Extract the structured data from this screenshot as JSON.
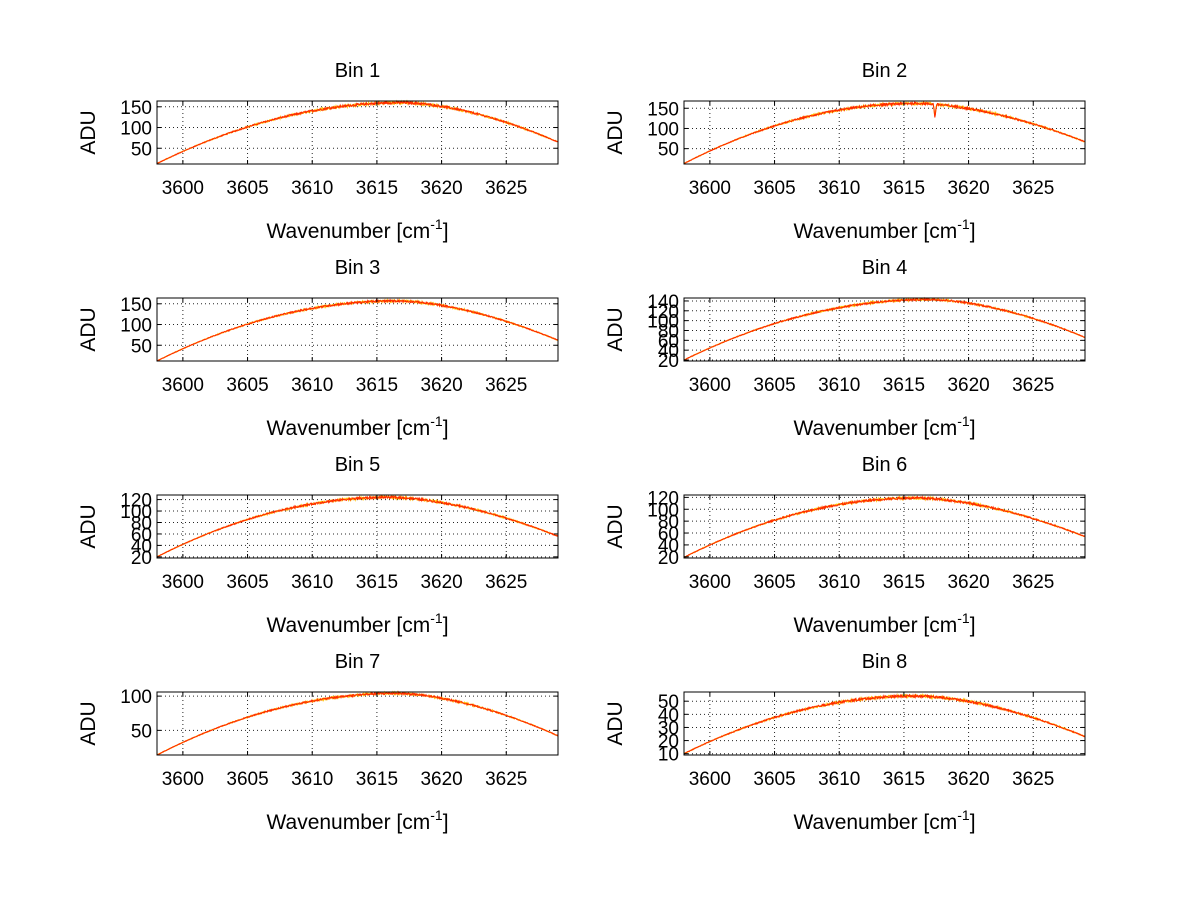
{
  "figure": {
    "xlabel": "Wavenumber [cm",
    "xlabel_sup": "-1",
    "xlabel_close": "]",
    "ylabel": "ADU"
  },
  "chart_data": [
    {
      "type": "line",
      "title": "Bin 1",
      "xlim": [
        3598,
        3629
      ],
      "ylim": [
        12,
        164
      ],
      "xticks": [
        3600,
        3605,
        3610,
        3615,
        3620,
        3625
      ],
      "yticks": [
        50,
        100,
        150
      ],
      "grid": true,
      "peak_x": 3617,
      "peak_y": 160,
      "min_y": 13,
      "end_y": 65,
      "noise": 3,
      "dips": []
    },
    {
      "type": "line",
      "title": "Bin 2",
      "xlim": [
        3598,
        3629
      ],
      "ylim": [
        12,
        168
      ],
      "xticks": [
        3600,
        3605,
        3610,
        3615,
        3620,
        3625
      ],
      "yticks": [
        50,
        100,
        150
      ],
      "grid": true,
      "peak_x": 3616,
      "peak_y": 162,
      "min_y": 13,
      "end_y": 67,
      "noise": 3,
      "dips": [
        {
          "x": 3617.4,
          "y": 125
        }
      ]
    },
    {
      "type": "line",
      "title": "Bin 3",
      "xlim": [
        3598,
        3629
      ],
      "ylim": [
        12,
        164
      ],
      "xticks": [
        3600,
        3605,
        3610,
        3615,
        3620,
        3625
      ],
      "yticks": [
        50,
        100,
        150
      ],
      "grid": true,
      "peak_x": 3616.5,
      "peak_y": 157,
      "min_y": 12,
      "end_y": 62,
      "noise": 2.5,
      "dips": []
    },
    {
      "type": "line",
      "title": "Bin 4",
      "xlim": [
        3598,
        3629
      ],
      "ylim": [
        18,
        146
      ],
      "xticks": [
        3600,
        3605,
        3610,
        3615,
        3620,
        3625
      ],
      "yticks": [
        20,
        40,
        60,
        80,
        100,
        120,
        140
      ],
      "grid": true,
      "peak_x": 3617,
      "peak_y": 143,
      "min_y": 20,
      "end_y": 66,
      "noise": 2,
      "dips": []
    },
    {
      "type": "line",
      "title": "Bin 5",
      "xlim": [
        3598,
        3629
      ],
      "ylim": [
        18,
        128
      ],
      "xticks": [
        3600,
        3605,
        3610,
        3615,
        3620,
        3625
      ],
      "yticks": [
        20,
        40,
        60,
        80,
        100,
        120
      ],
      "grid": true,
      "peak_x": 3616,
      "peak_y": 124,
      "min_y": 20,
      "end_y": 56,
      "noise": 2,
      "dips": []
    },
    {
      "type": "line",
      "title": "Bin 6",
      "xlim": [
        3598,
        3629
      ],
      "ylim": [
        18,
        124
      ],
      "xticks": [
        3600,
        3605,
        3610,
        3615,
        3620,
        3625
      ],
      "yticks": [
        20,
        40,
        60,
        80,
        100,
        120
      ],
      "grid": true,
      "peak_x": 3616,
      "peak_y": 119,
      "min_y": 19,
      "end_y": 54,
      "noise": 2,
      "dips": []
    },
    {
      "type": "line",
      "title": "Bin 7",
      "xlim": [
        3598,
        3629
      ],
      "ylim": [
        14,
        106
      ],
      "xticks": [
        3600,
        3605,
        3610,
        3615,
        3620,
        3625
      ],
      "yticks": [
        50,
        100
      ],
      "grid": true,
      "peak_x": 3616.5,
      "peak_y": 104,
      "min_y": 14,
      "end_y": 42,
      "noise": 1.5,
      "dips": []
    },
    {
      "type": "line",
      "title": "Bin 8",
      "xlim": [
        3598,
        3629
      ],
      "ylim": [
        9,
        57
      ],
      "xticks": [
        3600,
        3605,
        3610,
        3615,
        3620,
        3625
      ],
      "yticks": [
        10,
        20,
        30,
        40,
        50
      ],
      "grid": true,
      "peak_x": 3616,
      "peak_y": 54,
      "min_y": 10,
      "end_y": 23,
      "noise": 1,
      "dips": []
    }
  ]
}
